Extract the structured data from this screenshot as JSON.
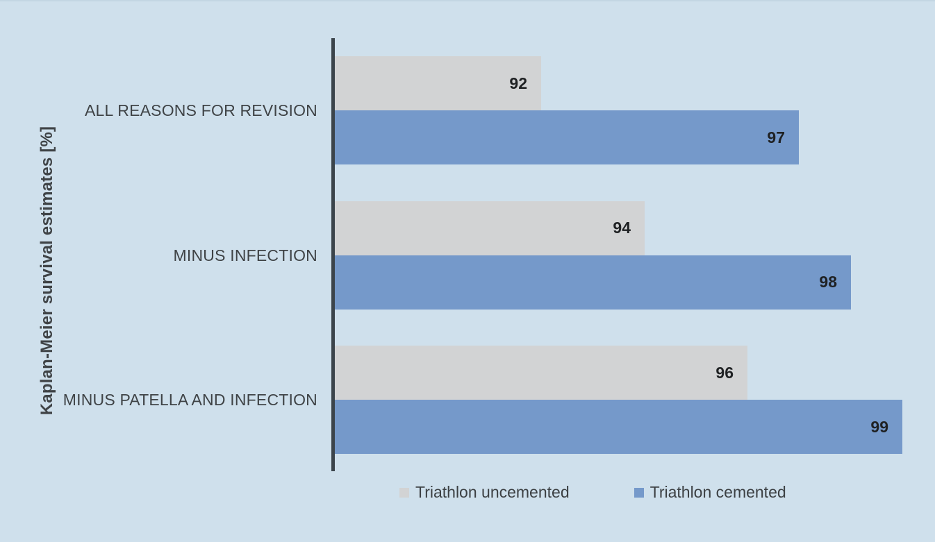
{
  "chart_data": {
    "type": "bar",
    "orientation": "horizontal",
    "title": "",
    "ylabel": "Kaplan-Meier survival estimates [%]",
    "xlabel": "",
    "categories": [
      "ALL REASONS FOR REVISION",
      "MINUS INFECTION",
      "MINUS PATELLA AND INFECTION"
    ],
    "series": [
      {
        "name": "Triathlon uncemented",
        "color": "#d2d3d4",
        "values": [
          92,
          94,
          96
        ]
      },
      {
        "name": "Triathlon cemented",
        "color": "#7599ca",
        "values": [
          97,
          98,
          99
        ]
      }
    ],
    "xlim": [
      88,
      99
    ],
    "grid": false,
    "legend_position": "bottom",
    "value_labels_shown": true
  },
  "colors": {
    "background": "#cfe0ec",
    "axis_line": "#3b444b",
    "category_label": "#3f4346",
    "value_label": "#1f2123",
    "legend_label": "#3c4043"
  }
}
